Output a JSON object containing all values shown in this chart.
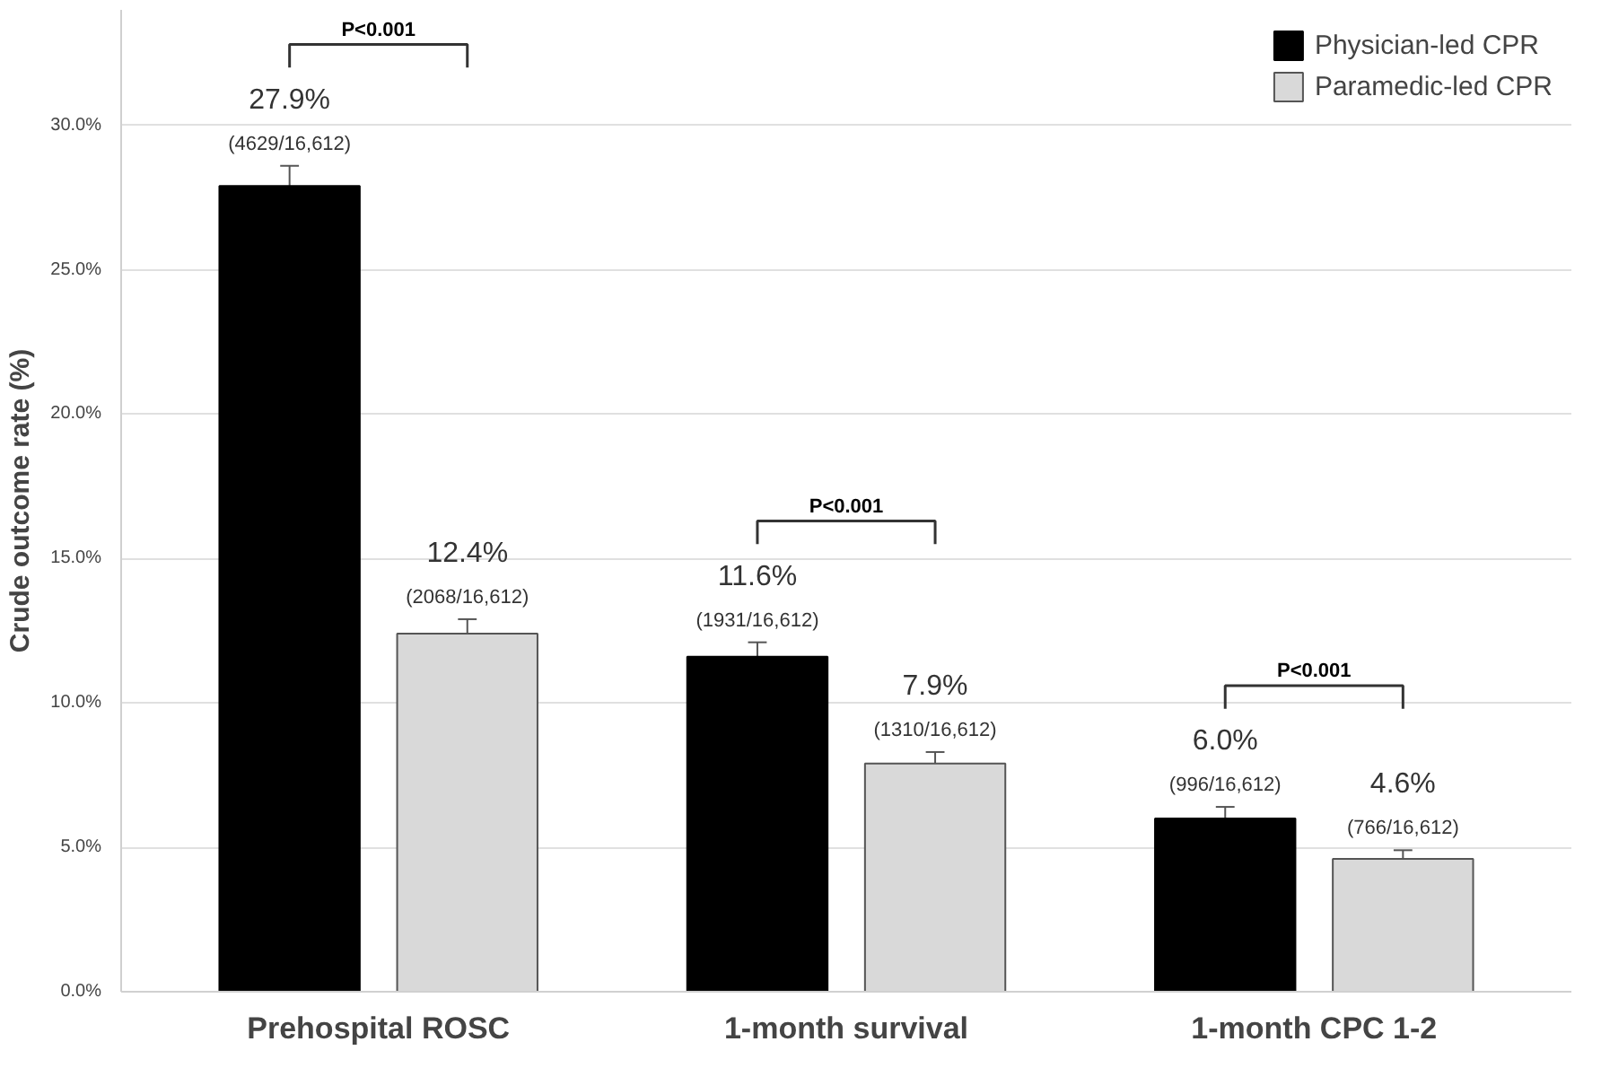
{
  "chart_data": {
    "type": "bar",
    "ylabel": "Crude outcome rate (%)",
    "categories": [
      "Prehospital ROSC",
      "1-month survival",
      "1-month CPC 1-2"
    ],
    "series": [
      {
        "name": "Physician-led CPR",
        "color": "#000000",
        "values": [
          27.9,
          11.6,
          6.0
        ],
        "errors": [
          0.7,
          0.5,
          0.4
        ],
        "value_labels": [
          "27.9%\n(4629/16,612)",
          "11.6%\n(1931/16,612)",
          "6.0%\n(996/16,612)"
        ]
      },
      {
        "name": "Paramedic-led CPR",
        "color": "#d9d9d9",
        "values": [
          12.4,
          7.9,
          4.6
        ],
        "errors": [
          0.5,
          0.4,
          0.3
        ],
        "value_labels": [
          "12.4%\n(2068/16,612)",
          "7.9%\n(1310/16,612)",
          "4.6%\n(766/16,612)"
        ]
      }
    ],
    "ylim": [
      0,
      34
    ],
    "yticks": [
      {
        "value": 0,
        "label": "0.0%"
      },
      {
        "value": 5,
        "label": "5.0%"
      },
      {
        "value": 10,
        "label": "10.0%"
      },
      {
        "value": 15,
        "label": "15.0%"
      },
      {
        "value": 20,
        "label": "20.0%"
      },
      {
        "value": 25,
        "label": "25.0%"
      },
      {
        "value": 30,
        "label": "30.0%"
      }
    ],
    "annotations": [
      "P<0.001",
      "P<0.001",
      "P<0.001"
    ],
    "grid": "y",
    "legend": "top right"
  }
}
